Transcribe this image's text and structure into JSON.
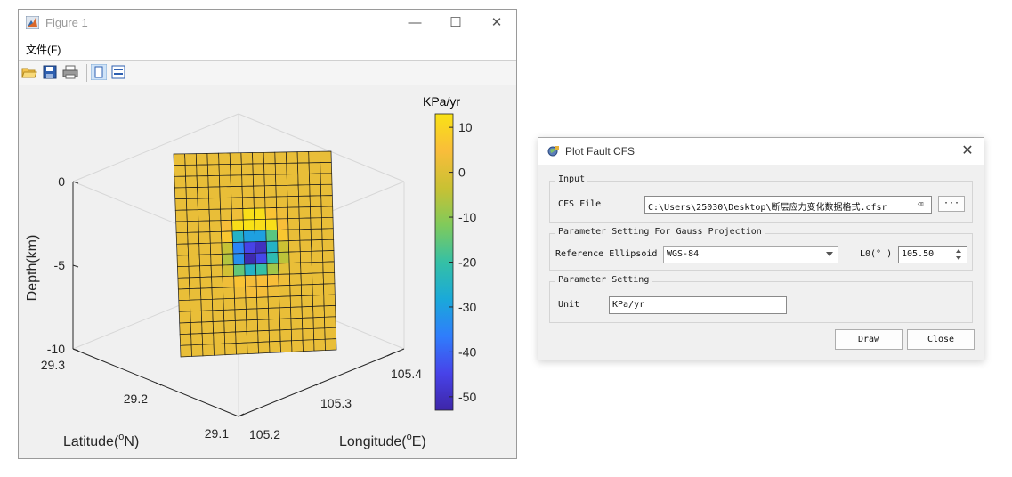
{
  "figure_window": {
    "title": "Figure 1",
    "menu": {
      "file_label": "文件(F)"
    },
    "controls": {
      "minimize": "—",
      "maximize": "☐",
      "close": "✕"
    },
    "toolbar": [
      "open-icon",
      "save-icon",
      "print-icon",
      "figure-icon",
      "panel-icon"
    ]
  },
  "chart_data": {
    "type": "heatmap",
    "title": "",
    "colorbar": {
      "title": "KPa/yr",
      "ticks": [
        "10",
        "0",
        "-10",
        "-20",
        "-30",
        "-40",
        "-50"
      ],
      "range": [
        -53,
        13
      ],
      "colormap": [
        "#3e26a8",
        "#4743e9",
        "#2f7dfc",
        "#1aa9d9",
        "#35c0a5",
        "#80ca5b",
        "#c9c133",
        "#f9bd3a",
        "#f9e215"
      ]
    },
    "z_axis": {
      "label": "Depth(km)",
      "ticks": [
        "0",
        "-5",
        "-10"
      ],
      "range": [
        -10,
        0
      ]
    },
    "y_axis": {
      "label": "Latitude(ºN)",
      "label_text": "Latitude(",
      "label_sup": "o",
      "label_end": "N)",
      "ticks": [
        "29.3",
        "29.2",
        "29.1"
      ]
    },
    "x_axis": {
      "label": "Longitude(ºE)",
      "label_text": "Longitude(",
      "label_sup": "o",
      "label_end": "E)",
      "ticks": [
        "105.2",
        "105.3",
        "105.4"
      ]
    },
    "grid": true,
    "fault_grid": {
      "rows": 18,
      "cols": 14
    },
    "values": [
      [
        2,
        2,
        2,
        2,
        2,
        2,
        2,
        2,
        2,
        2,
        2,
        2,
        2,
        2
      ],
      [
        2,
        2,
        2,
        2,
        2,
        2,
        2,
        2,
        2,
        2,
        2,
        2,
        2,
        2
      ],
      [
        2,
        2,
        2,
        2,
        2,
        2,
        2,
        2,
        2,
        2,
        2,
        2,
        2,
        2
      ],
      [
        2,
        2,
        2,
        2,
        2,
        2,
        2,
        2,
        2,
        2,
        2,
        2,
        2,
        2
      ],
      [
        2,
        2,
        2,
        2,
        2,
        2,
        2,
        2,
        2,
        2,
        2,
        2,
        2,
        2
      ],
      [
        2,
        2,
        2,
        2,
        2,
        3,
        12,
        12,
        6,
        3,
        2,
        2,
        2,
        2
      ],
      [
        2,
        2,
        2,
        2,
        4,
        12,
        13,
        12,
        12,
        5,
        2,
        2,
        2,
        2
      ],
      [
        2,
        2,
        2,
        2,
        7,
        -25,
        -30,
        -30,
        -16,
        7,
        2,
        2,
        2,
        2
      ],
      [
        2,
        2,
        2,
        2,
        -4,
        -35,
        -45,
        -50,
        -25,
        -3,
        2,
        2,
        2,
        2
      ],
      [
        2,
        2,
        2,
        2,
        -6,
        -33,
        -52,
        -44,
        -22,
        -5,
        2,
        2,
        2,
        2
      ],
      [
        2,
        2,
        2,
        2,
        -2,
        -15,
        -25,
        -20,
        -8,
        1,
        2,
        2,
        2,
        2
      ],
      [
        2,
        2,
        2,
        2,
        3,
        6,
        4,
        5,
        5,
        3,
        2,
        2,
        2,
        2
      ],
      [
        2,
        2,
        2,
        2,
        2,
        3,
        4,
        4,
        3,
        2,
        2,
        2,
        2,
        2
      ],
      [
        2,
        2,
        2,
        2,
        2,
        2,
        2,
        2,
        2,
        2,
        2,
        2,
        2,
        2
      ],
      [
        2,
        2,
        2,
        2,
        2,
        2,
        2,
        2,
        2,
        2,
        2,
        2,
        2,
        2
      ],
      [
        2,
        2,
        2,
        2,
        2,
        2,
        2,
        2,
        2,
        2,
        2,
        2,
        2,
        2
      ],
      [
        2,
        2,
        2,
        2,
        2,
        2,
        2,
        2,
        2,
        2,
        2,
        2,
        2,
        2
      ],
      [
        2,
        2,
        2,
        2,
        2,
        2,
        2,
        2,
        2,
        2,
        2,
        2,
        2,
        2
      ]
    ]
  },
  "dialog": {
    "title": "Plot Fault CFS",
    "close_glyph": "✕",
    "input_group": {
      "title": "Input",
      "cfs_file_label": "CFS File",
      "cfs_file_value": "C:\\Users\\25030\\Desktop\\断层应力变化数据格式.cfsr",
      "clear_glyph": "⌫",
      "browse_label": "···"
    },
    "projection_group": {
      "title": "Parameter Setting For Gauss Projection",
      "ellipsoid_label": "Reference Ellipsoid",
      "ellipsoid_value": "WGS-84",
      "l0_label": "L0(° )",
      "l0_value": "105.50"
    },
    "param_group": {
      "title": "Parameter Setting",
      "unit_label": "Unit",
      "unit_value": "KPa/yr"
    },
    "buttons": {
      "draw": "Draw",
      "close": "Close"
    }
  }
}
